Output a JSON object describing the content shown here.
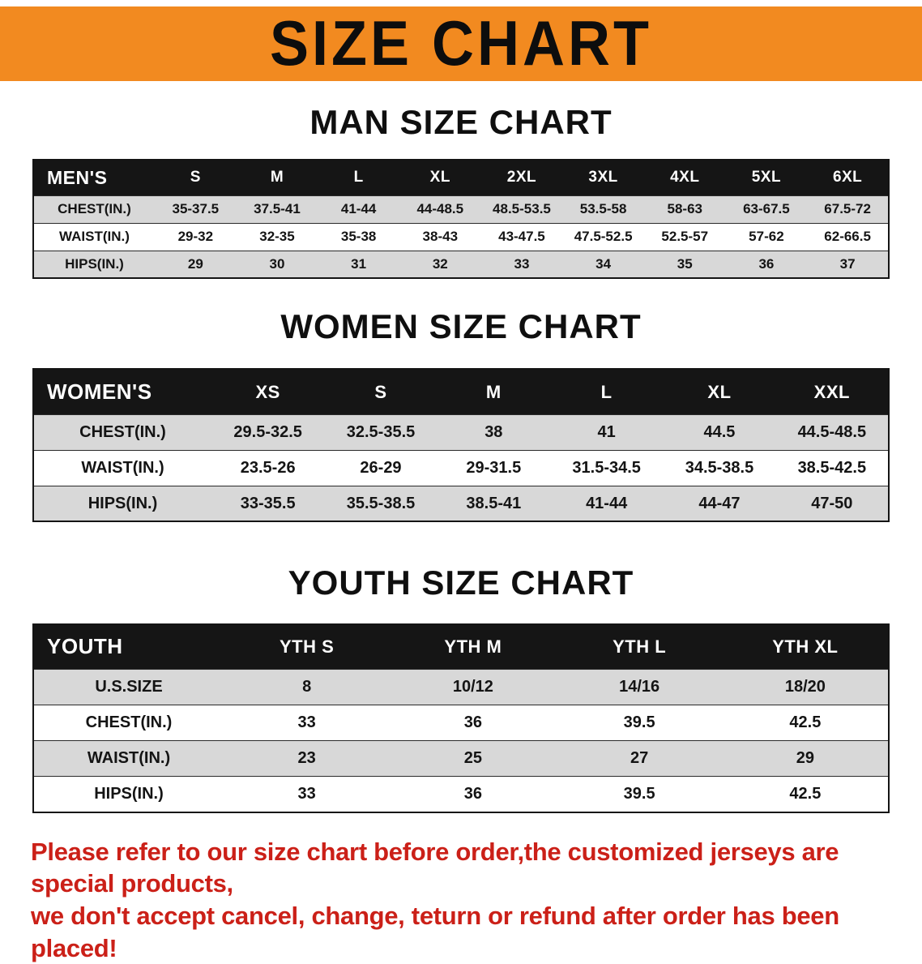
{
  "banner": {
    "title": "SIZE CHART"
  },
  "sections": [
    {
      "heading": "MAN SIZE CHART",
      "table": {
        "header": [
          "MEN'S",
          "S",
          "M",
          "L",
          "XL",
          "2XL",
          "3XL",
          "4XL",
          "5XL",
          "6XL"
        ],
        "rows": [
          [
            "CHEST(IN.)",
            "35-37.5",
            "37.5-41",
            "41-44",
            "44-48.5",
            "48.5-53.5",
            "53.5-58",
            "58-63",
            "63-67.5",
            "67.5-72"
          ],
          [
            "WAIST(IN.)",
            "29-32",
            "32-35",
            "35-38",
            "38-43",
            "43-47.5",
            "47.5-52.5",
            "52.5-57",
            "57-62",
            "62-66.5"
          ],
          [
            "HIPS(IN.)",
            "29",
            "30",
            "31",
            "32",
            "33",
            "34",
            "35",
            "36",
            "37"
          ]
        ]
      }
    },
    {
      "heading": "WOMEN SIZE CHART",
      "table": {
        "header": [
          "WOMEN'S",
          "XS",
          "S",
          "M",
          "L",
          "XL",
          "XXL"
        ],
        "rows": [
          [
            "CHEST(IN.)",
            "29.5-32.5",
            "32.5-35.5",
            "38",
            "41",
            "44.5",
            "44.5-48.5"
          ],
          [
            "WAIST(IN.)",
            "23.5-26",
            "26-29",
            "29-31.5",
            "31.5-34.5",
            "34.5-38.5",
            "38.5-42.5"
          ],
          [
            "HIPS(IN.)",
            "33-35.5",
            "35.5-38.5",
            "38.5-41",
            "41-44",
            "44-47",
            "47-50"
          ]
        ]
      }
    },
    {
      "heading": "YOUTH SIZE CHART",
      "table": {
        "header": [
          "YOUTH",
          "YTH S",
          "YTH M",
          "YTH L",
          "YTH XL"
        ],
        "rows": [
          [
            "U.S.SIZE",
            "8",
            "10/12",
            "14/16",
            "18/20"
          ],
          [
            "CHEST(IN.)",
            "33",
            "36",
            "39.5",
            "42.5"
          ],
          [
            "WAIST(IN.)",
            "23",
            "25",
            "27",
            "29"
          ],
          [
            "HIPS(IN.)",
            "33",
            "36",
            "39.5",
            "42.5"
          ]
        ]
      }
    }
  ],
  "footer": {
    "line1": "Please refer to our size chart before order,the customized jerseys are special products,",
    "line2": "we don't accept cancel, change, teturn or refund after order has been placed!"
  },
  "colors": {
    "banner_bg": "#F28A20",
    "header_bg": "#151515",
    "stripe_bg": "#D8D8D8",
    "footer_red": "#CB2018"
  }
}
